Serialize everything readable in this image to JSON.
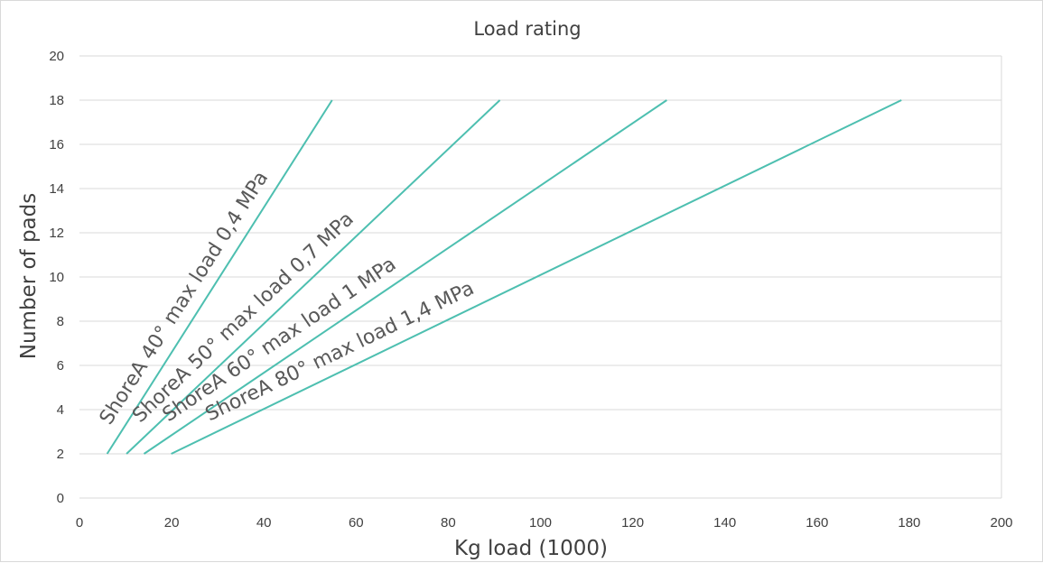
{
  "chart_data": {
    "type": "line",
    "title": "Load rating",
    "xlabel": "Kg load (1000)",
    "ylabel": "Number of pads",
    "xlim": [
      0,
      200
    ],
    "ylim": [
      0,
      20
    ],
    "x_ticks": [
      0,
      20,
      40,
      60,
      80,
      100,
      120,
      140,
      160,
      180,
      200
    ],
    "y_ticks": [
      0,
      2,
      4,
      6,
      8,
      10,
      12,
      14,
      16,
      18,
      20
    ],
    "grid": "horizontal",
    "line_color": "#4dbfb0",
    "series": [
      {
        "name": "ShoreA 40° max load 0,4 MPa",
        "points": [
          [
            6,
            2
          ],
          [
            54.8,
            18
          ]
        ]
      },
      {
        "name": "ShoreA 50° max load 0,7 MPa",
        "points": [
          [
            10.2,
            2
          ],
          [
            91.2,
            18
          ]
        ]
      },
      {
        "name": "ShoreA 60° max load 1 MPa",
        "points": [
          [
            14,
            2
          ],
          [
            127.4,
            18
          ]
        ]
      },
      {
        "name": "ShoreA 80° max load 1,4 MPa",
        "points": [
          [
            19.9,
            2
          ],
          [
            178.3,
            18
          ]
        ]
      }
    ]
  }
}
